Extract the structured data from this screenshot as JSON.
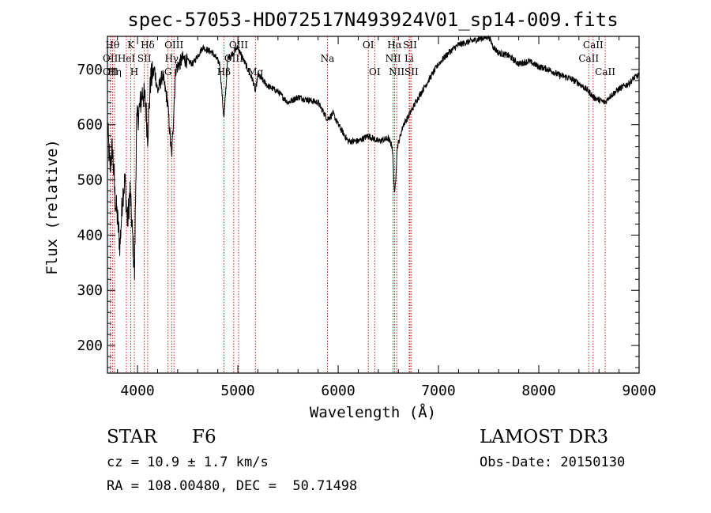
{
  "chart_data": {
    "type": "line",
    "title": "spec-57053-HD072517N493924V01_sp14-009.fits",
    "xlabel": "Wavelength (Å)",
    "ylabel": "Flux (relative)",
    "xlim": [
      3700,
      9000
    ],
    "ylim": [
      150,
      760
    ],
    "x_ticks": [
      4000,
      5000,
      6000,
      7000,
      8000,
      9000
    ],
    "x_tick_labels": [
      "4000",
      "5000",
      "6000",
      "7000",
      "8000",
      "9000"
    ],
    "y_ticks": [
      200,
      300,
      400,
      500,
      600,
      700
    ],
    "y_tick_labels": [
      "200",
      "300",
      "400",
      "500",
      "600",
      "700"
    ],
    "grid": false,
    "line_color": "#000000",
    "marker_color": "#cc0000",
    "series": [
      {
        "x": [
          3700,
          3725,
          3750,
          3775,
          3800,
          3825,
          3850,
          3875,
          3900,
          3925,
          3950,
          3970,
          3990,
          4020,
          4050,
          4080,
          4101,
          4130,
          4170,
          4200,
          4250,
          4300,
          4340,
          4380,
          4450,
          4550,
          4650,
          4750,
          4820,
          4861,
          4900,
          4950,
          5000,
          5050,
          5100,
          5150,
          5175,
          5200,
          5300,
          5400,
          5500,
          5600,
          5700,
          5800,
          5893,
          5950,
          6000,
          6100,
          6200,
          6300,
          6400,
          6500,
          6540,
          6563,
          6590,
          6650,
          6700,
          6800,
          6900,
          7000,
          7100,
          7200,
          7300,
          7400,
          7500,
          7550,
          7600,
          7700,
          7800,
          7900,
          8000,
          8100,
          8200,
          8300,
          8400,
          8500,
          8542,
          8600,
          8662,
          8700,
          8800,
          8900,
          8950,
          9000
        ],
        "y": [
          600,
          520,
          560,
          470,
          430,
          380,
          470,
          500,
          420,
          480,
          400,
          330,
          600,
          630,
          660,
          640,
          580,
          680,
          700,
          660,
          690,
          640,
          540,
          700,
          720,
          710,
          740,
          730,
          710,
          610,
          720,
          730,
          740,
          720,
          700,
          680,
          660,
          690,
          670,
          660,
          640,
          650,
          645,
          640,
          610,
          620,
          600,
          570,
          570,
          580,
          570,
          575,
          560,
          470,
          560,
          600,
          615,
          650,
          680,
          710,
          730,
          745,
          750,
          755,
          760,
          740,
          730,
          725,
          710,
          715,
          705,
          700,
          690,
          685,
          675,
          660,
          650,
          645,
          640,
          650,
          665,
          675,
          685,
          690
        ]
      }
    ],
    "lines": [
      {
        "x": 3750,
        "label": "Hθ",
        "tier": 1
      },
      {
        "x": 3729,
        "label": "OII",
        "tier": 2
      },
      {
        "x": 3729,
        "label": "OII",
        "tier": 3
      },
      {
        "x": 3771,
        "label": "Hη",
        "tier": 3
      },
      {
        "x": 3889,
        "label": "HeI",
        "tier": 2
      },
      {
        "x": 3933,
        "label": "K",
        "tier": 1
      },
      {
        "x": 3968,
        "label": "H",
        "tier": 3
      },
      {
        "x": 4068,
        "label": "SII",
        "tier": 2
      },
      {
        "x": 4101,
        "label": "Hδ",
        "tier": 1
      },
      {
        "x": 4304,
        "label": "G",
        "tier": 3
      },
      {
        "x": 4340,
        "label": "Hγ",
        "tier": 2
      },
      {
        "x": 4363,
        "label": "OIII",
        "tier": 1
      },
      {
        "x": 4861,
        "label": "Hβ",
        "tier": 3
      },
      {
        "x": 4959,
        "label": "OIII",
        "tier": 2
      },
      {
        "x": 5007,
        "label": "OIII",
        "tier": 1
      },
      {
        "x": 5175,
        "label": "Mg",
        "tier": 3
      },
      {
        "x": 5893,
        "label": "Na",
        "tier": 2
      },
      {
        "x": 6300,
        "label": "OI",
        "tier": 1
      },
      {
        "x": 6364,
        "label": "OI",
        "tier": 3
      },
      {
        "x": 6548,
        "label": "NII",
        "tier": 2
      },
      {
        "x": 6563,
        "label": "Hα",
        "tier": 1
      },
      {
        "x": 6583,
        "label": "NII",
        "tier": 3
      },
      {
        "x": 6708,
        "label": "Li",
        "tier": 2
      },
      {
        "x": 6716,
        "label": "SII",
        "tier": 1
      },
      {
        "x": 6731,
        "label": "SII",
        "tier": 3
      },
      {
        "x": 8498,
        "label": "CaII",
        "tier": 2
      },
      {
        "x": 8542,
        "label": "CaII",
        "tier": 1
      },
      {
        "x": 8662,
        "label": "CaII",
        "tier": 3
      }
    ]
  },
  "info": {
    "class": "STAR",
    "subclass": "F6",
    "survey": "LAMOST DR3",
    "cz": "cz = 10.9 ± 1.7 km/s",
    "obs_date": "Obs-Date: 20150130",
    "coords": "RA = 108.00480, DEC =  50.71498"
  }
}
